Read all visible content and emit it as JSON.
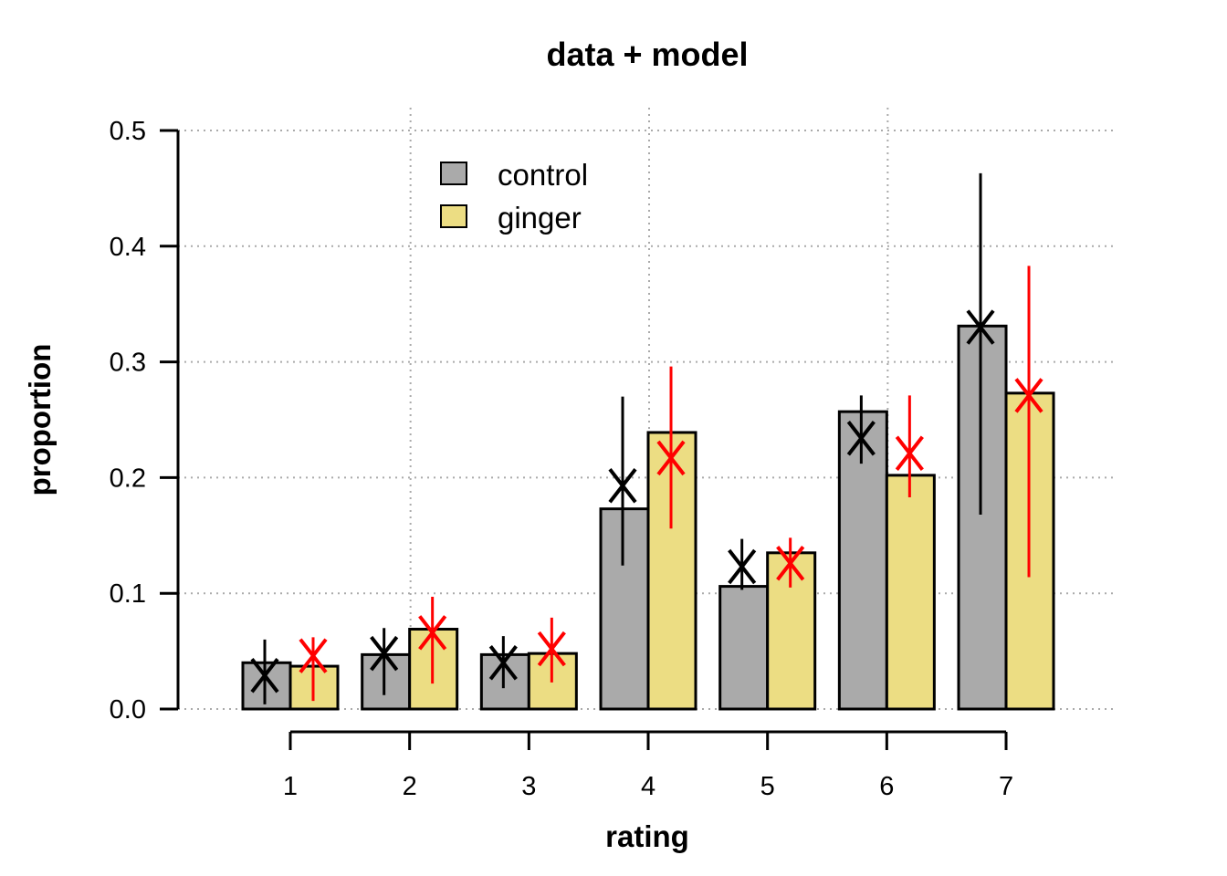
{
  "chart_data": {
    "type": "bar",
    "title": "data + model",
    "xlabel": "rating",
    "ylabel": "proportion",
    "categories": [
      "1",
      "2",
      "3",
      "4",
      "5",
      "6",
      "7"
    ],
    "ylim": [
      0,
      0.5
    ],
    "yticks": [
      "0.0",
      "0.1",
      "0.2",
      "0.3",
      "0.4",
      "0.5"
    ],
    "grid": true,
    "legend_position": "top-left",
    "series": [
      {
        "name": "control",
        "color": "#aaaaaa",
        "values": [
          0.04,
          0.047,
          0.047,
          0.173,
          0.106,
          0.257,
          0.331
        ],
        "model_color": "#000000",
        "model_estimate": [
          0.029,
          0.048,
          0.04,
          0.193,
          0.123,
          0.234,
          0.33
        ],
        "model_interval": [
          [
            0.004,
            0.06
          ],
          [
            0.012,
            0.07
          ],
          [
            0.018,
            0.063
          ],
          [
            0.124,
            0.27
          ],
          [
            0.103,
            0.147
          ],
          [
            0.212,
            0.271
          ],
          [
            0.168,
            0.463
          ]
        ]
      },
      {
        "name": "ginger",
        "color": "#ecdd83",
        "values": [
          0.037,
          0.069,
          0.048,
          0.239,
          0.135,
          0.202,
          0.273
        ],
        "model_color": "#ff0000",
        "model_estimate": [
          0.046,
          0.066,
          0.052,
          0.217,
          0.126,
          0.221,
          0.271
        ],
        "model_interval": [
          [
            0.007,
            0.062
          ],
          [
            0.022,
            0.097
          ],
          [
            0.023,
            0.079
          ],
          [
            0.156,
            0.296
          ],
          [
            0.105,
            0.148
          ],
          [
            0.183,
            0.271
          ],
          [
            0.114,
            0.383
          ]
        ]
      }
    ]
  }
}
